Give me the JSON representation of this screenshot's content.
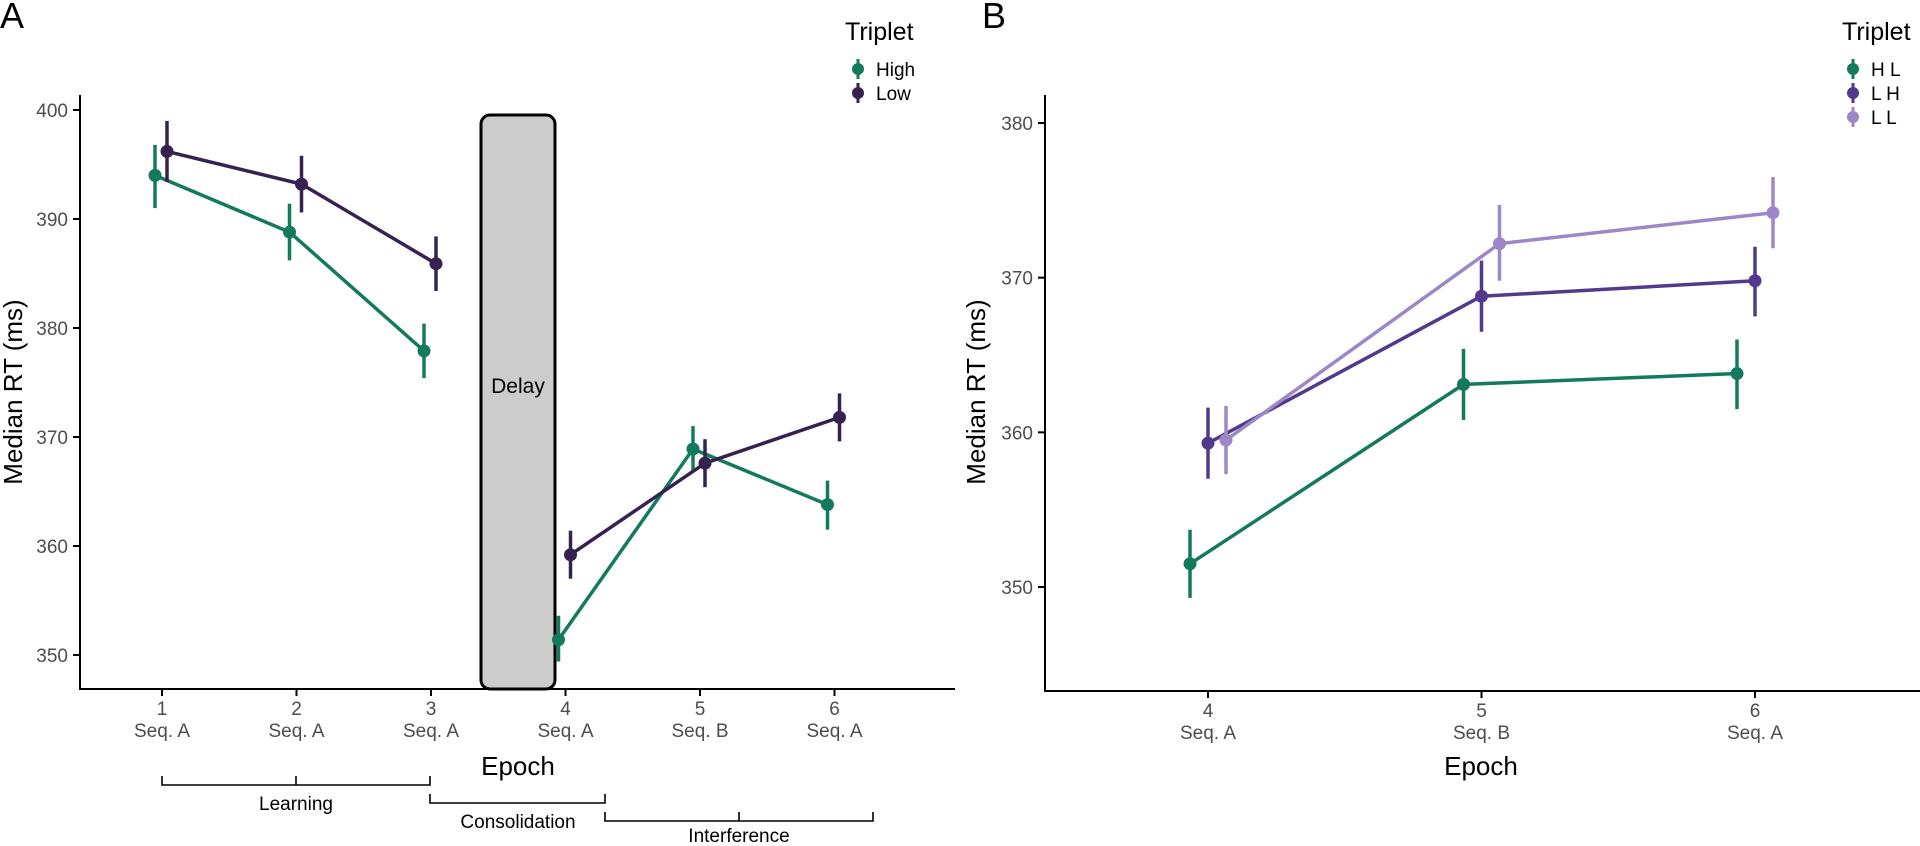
{
  "chart_data": [
    {
      "panel": "A",
      "type": "line",
      "xlabel": "Epoch",
      "ylabel": "Median RT (ms)",
      "ylim": [
        347,
        401
      ],
      "yticks": [
        350,
        360,
        370,
        380,
        390,
        400
      ],
      "x_ticks": [
        {
          "epoch": 1,
          "top": "1",
          "bottom": "Seq. A"
        },
        {
          "epoch": 2,
          "top": "2",
          "bottom": "Seq. A"
        },
        {
          "epoch": 3,
          "top": "3",
          "bottom": "Seq. A"
        },
        {
          "epoch": 4,
          "top": "4",
          "bottom": "Seq. A"
        },
        {
          "epoch": 5,
          "top": "5",
          "bottom": "Seq. B"
        },
        {
          "epoch": 6,
          "top": "6",
          "bottom": "Seq. A"
        }
      ],
      "legend_title": "Triplet",
      "series": [
        {
          "name": "High",
          "color": "#137a5e",
          "segments": [
            [
              {
                "epoch": 1,
                "y": 394.0,
                "lo": 391.0,
                "hi": 396.8
              },
              {
                "epoch": 2,
                "y": 388.8,
                "lo": 386.2,
                "hi": 391.4
              },
              {
                "epoch": 3,
                "y": 377.9,
                "lo": 375.4,
                "hi": 380.4
              }
            ],
            [
              {
                "epoch": 4,
                "y": 351.4,
                "lo": 349.4,
                "hi": 353.6
              },
              {
                "epoch": 5,
                "y": 368.9,
                "lo": 366.8,
                "hi": 371.0
              },
              {
                "epoch": 6,
                "y": 363.8,
                "lo": 361.5,
                "hi": 366.0
              }
            ]
          ]
        },
        {
          "name": "Low",
          "color": "#352250",
          "segments": [
            [
              {
                "epoch": 1,
                "y": 396.2,
                "lo": 393.4,
                "hi": 399.0
              },
              {
                "epoch": 2,
                "y": 393.2,
                "lo": 390.6,
                "hi": 395.8
              },
              {
                "epoch": 3,
                "y": 385.9,
                "lo": 383.4,
                "hi": 388.4
              }
            ],
            [
              {
                "epoch": 4,
                "y": 359.2,
                "lo": 357.0,
                "hi": 361.4
              },
              {
                "epoch": 5,
                "y": 367.6,
                "lo": 365.4,
                "hi": 369.8
              },
              {
                "epoch": 6,
                "y": 371.8,
                "lo": 369.6,
                "hi": 374.0
              }
            ]
          ]
        }
      ],
      "annotations": {
        "delay": "Delay",
        "phases": [
          "Learning",
          "Consolidation",
          "Interference"
        ]
      }
    },
    {
      "panel": "B",
      "type": "line",
      "xlabel": "Epoch",
      "ylabel": "Median RT (ms)",
      "ylim": [
        343,
        382
      ],
      "yticks": [
        350,
        360,
        370,
        380
      ],
      "x_ticks": [
        {
          "epoch": 4,
          "top": "4",
          "bottom": "Seq. A"
        },
        {
          "epoch": 5,
          "top": "5",
          "bottom": "Seq. B"
        },
        {
          "epoch": 6,
          "top": "6",
          "bottom": "Seq. A"
        }
      ],
      "legend_title": "Triplet",
      "series": [
        {
          "name": "H L",
          "color": "#137a5e",
          "points": [
            {
              "epoch": 4,
              "y": 351.5,
              "lo": 349.3,
              "hi": 353.7
            },
            {
              "epoch": 5,
              "y": 363.1,
              "lo": 360.8,
              "hi": 365.4
            },
            {
              "epoch": 6,
              "y": 363.8,
              "lo": 361.5,
              "hi": 366.0
            }
          ]
        },
        {
          "name": "L H",
          "color": "#513a8c",
          "points": [
            {
              "epoch": 4,
              "y": 359.3,
              "lo": 357.0,
              "hi": 361.6
            },
            {
              "epoch": 5,
              "y": 368.8,
              "lo": 366.5,
              "hi": 371.1
            },
            {
              "epoch": 6,
              "y": 369.8,
              "lo": 367.5,
              "hi": 372.0
            }
          ]
        },
        {
          "name": "L L",
          "color": "#9c87c9",
          "points": [
            {
              "epoch": 4,
              "y": 359.5,
              "lo": 357.3,
              "hi": 361.7
            },
            {
              "epoch": 5,
              "y": 372.2,
              "lo": 369.8,
              "hi": 374.7
            },
            {
              "epoch": 6,
              "y": 374.2,
              "lo": 371.9,
              "hi": 376.5
            }
          ]
        }
      ]
    }
  ]
}
